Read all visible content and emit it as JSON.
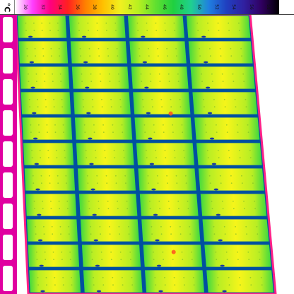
{
  "palette": {
    "unit": "°C",
    "ticks": [
      "30",
      "32",
      "34",
      "36",
      "38",
      "40",
      "42",
      "44",
      "46",
      "48",
      "50",
      "52",
      "54",
      "56",
      "58"
    ],
    "stops": [
      "#ffffff",
      "#ff40ff",
      "#ff0080",
      "#ff2020",
      "#ff8000",
      "#ffc000",
      "#f0f020",
      "#b8f020",
      "#60e030",
      "#20d040",
      "#20d090",
      "#2080e0",
      "#2040c0",
      "#3020a0",
      "#300060",
      "#000000"
    ]
  },
  "colors": {
    "frame": "#0050a0",
    "cell_hot": "#f6f51a",
    "cell_warm": "#b8ee24",
    "cell_cool": "#3cd840",
    "rim": "#ff2088",
    "background": "#ffffff"
  }
}
